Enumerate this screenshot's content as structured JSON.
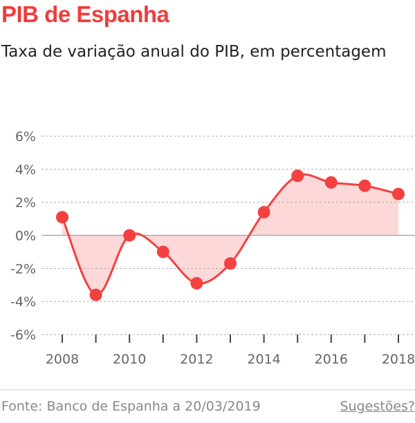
{
  "title": "PIB de Espanha",
  "subtitle": "Taxa de variação anual do PIB, em percentagem",
  "footer": {
    "source": "Fonte: Banco de Espanha a 20/03/2019",
    "suggestions": "Sugestões?"
  },
  "colors": {
    "title": "#f03c3c",
    "line": "#f44040",
    "area": "#fdd8d8"
  },
  "chart_data": {
    "type": "line",
    "title": "PIB de Espanha",
    "subtitle": "Taxa de variação anual do PIB, em percentagem",
    "x": [
      2008,
      2009,
      2010,
      2011,
      2012,
      2013,
      2014,
      2015,
      2016,
      2017,
      2018
    ],
    "values": [
      1.1,
      -3.6,
      0.0,
      -1.0,
      -2.9,
      -1.7,
      1.4,
      3.6,
      3.2,
      3.0,
      2.5
    ],
    "ylim": [
      -6,
      6
    ],
    "yticks": [
      -6,
      -4,
      -2,
      0,
      2,
      4,
      6
    ],
    "ytick_labels": [
      "-6%",
      "-4%",
      "-2%",
      "0%",
      "2%",
      "4%",
      "6%"
    ],
    "xticks": [
      2008,
      2010,
      2012,
      2014,
      2016,
      2018
    ],
    "xtick_labels": [
      "2008",
      "2010",
      "2012",
      "2014",
      "2016",
      "2018"
    ],
    "grid": true,
    "area_fill_to_zero": true
  }
}
